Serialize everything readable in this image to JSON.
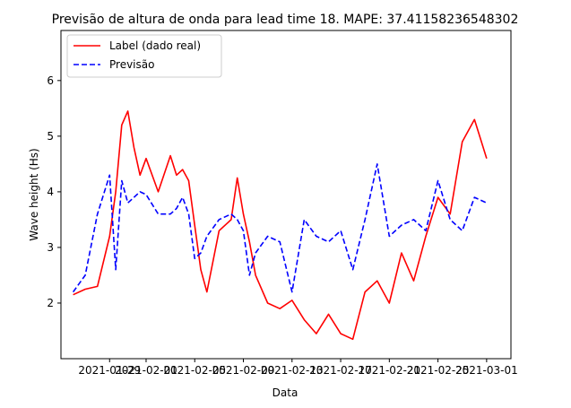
{
  "chart_data": {
    "type": "line",
    "title": "Previsão de altura de onda para lead time 18. MAPE: 37.41158236548302",
    "xlabel": "Data",
    "ylabel": "Wave height (Hs)",
    "xlim": [
      "2021-01-25",
      "2021-03-03"
    ],
    "ylim": [
      1.0,
      6.9
    ],
    "x_ticks": [
      "2021-01-29",
      "2021-02-01",
      "2021-02-05",
      "2021-02-09",
      "2021-02-13",
      "2021-02-17",
      "2021-02-21",
      "2021-02-25",
      "2021-03-01"
    ],
    "x_tick_labels": [
      "2021-01-29",
      "2021-02-01",
      "2021-02-05",
      "2021-02-09",
      "2021-02-13",
      "2021-02-17",
      "2021-02-21",
      "2021-02-25",
      "2021-03-01"
    ],
    "y_ticks": [
      2,
      3,
      4,
      5,
      6
    ],
    "y_tick_labels": [
      "2",
      "3",
      "4",
      "5",
      "6"
    ],
    "grid": false,
    "legend_position": "upper-left",
    "series": [
      {
        "name": "Label (dado real)",
        "color": "#ff0000",
        "style": "solid",
        "x": [
          "2021-01-26",
          "2021-01-27",
          "2021-01-28",
          "2021-01-29",
          "2021-01-29T12",
          "2021-01-30",
          "2021-01-30T12",
          "2021-01-31",
          "2021-01-31T12",
          "2021-02-01",
          "2021-02-02",
          "2021-02-03",
          "2021-02-03T12",
          "2021-02-04",
          "2021-02-04T12",
          "2021-02-05",
          "2021-02-05T12",
          "2021-02-06",
          "2021-02-07",
          "2021-02-08",
          "2021-02-08T12",
          "2021-02-09",
          "2021-02-09T12",
          "2021-02-10",
          "2021-02-11",
          "2021-02-12",
          "2021-02-13",
          "2021-02-14",
          "2021-02-15",
          "2021-02-16",
          "2021-02-17",
          "2021-02-18",
          "2021-02-19",
          "2021-02-20",
          "2021-02-21",
          "2021-02-22",
          "2021-02-23",
          "2021-02-24",
          "2021-02-25",
          "2021-02-26",
          "2021-02-27",
          "2021-02-28",
          "2021-03-01"
        ],
        "y": [
          2.15,
          2.25,
          2.3,
          3.2,
          4.0,
          5.2,
          5.45,
          4.8,
          4.3,
          4.6,
          4.0,
          4.65,
          4.3,
          4.4,
          4.2,
          3.4,
          2.6,
          2.2,
          3.3,
          3.5,
          4.25,
          3.6,
          3.1,
          2.5,
          2.0,
          1.9,
          2.05,
          1.7,
          1.45,
          1.8,
          1.45,
          1.35,
          2.2,
          2.4,
          2.0,
          2.9,
          2.4,
          3.2,
          3.9,
          3.6,
          4.9,
          5.3,
          4.6
        ]
      },
      {
        "name": "Previsão",
        "color": "#0000ff",
        "style": "dashed",
        "x": [
          "2021-01-26",
          "2021-01-27",
          "2021-01-28",
          "2021-01-29",
          "2021-01-29T12",
          "2021-01-30",
          "2021-01-30T12",
          "2021-01-31",
          "2021-01-31T12",
          "2021-02-01",
          "2021-02-02",
          "2021-02-03",
          "2021-02-03T12",
          "2021-02-04",
          "2021-02-04T12",
          "2021-02-05",
          "2021-02-05T12",
          "2021-02-06",
          "2021-02-07",
          "2021-02-08",
          "2021-02-08T12",
          "2021-02-09",
          "2021-02-09T12",
          "2021-02-10",
          "2021-02-11",
          "2021-02-12",
          "2021-02-13",
          "2021-02-14",
          "2021-02-15",
          "2021-02-16",
          "2021-02-17",
          "2021-02-18",
          "2021-02-19",
          "2021-02-20",
          "2021-02-21",
          "2021-02-22",
          "2021-02-23",
          "2021-02-24",
          "2021-02-25",
          "2021-02-26",
          "2021-02-27",
          "2021-02-28",
          "2021-03-01"
        ],
        "y": [
          2.2,
          2.5,
          3.6,
          4.3,
          2.6,
          4.2,
          3.8,
          3.9,
          4.0,
          3.95,
          3.6,
          3.6,
          3.7,
          3.9,
          3.6,
          2.8,
          2.9,
          3.2,
          3.5,
          3.6,
          3.5,
          3.3,
          2.5,
          2.9,
          3.2,
          3.1,
          2.2,
          3.5,
          3.2,
          3.1,
          3.3,
          2.6,
          3.5,
          4.5,
          3.2,
          3.4,
          3.5,
          3.3,
          4.2,
          3.5,
          3.3,
          3.9,
          3.8
        ]
      }
    ]
  }
}
